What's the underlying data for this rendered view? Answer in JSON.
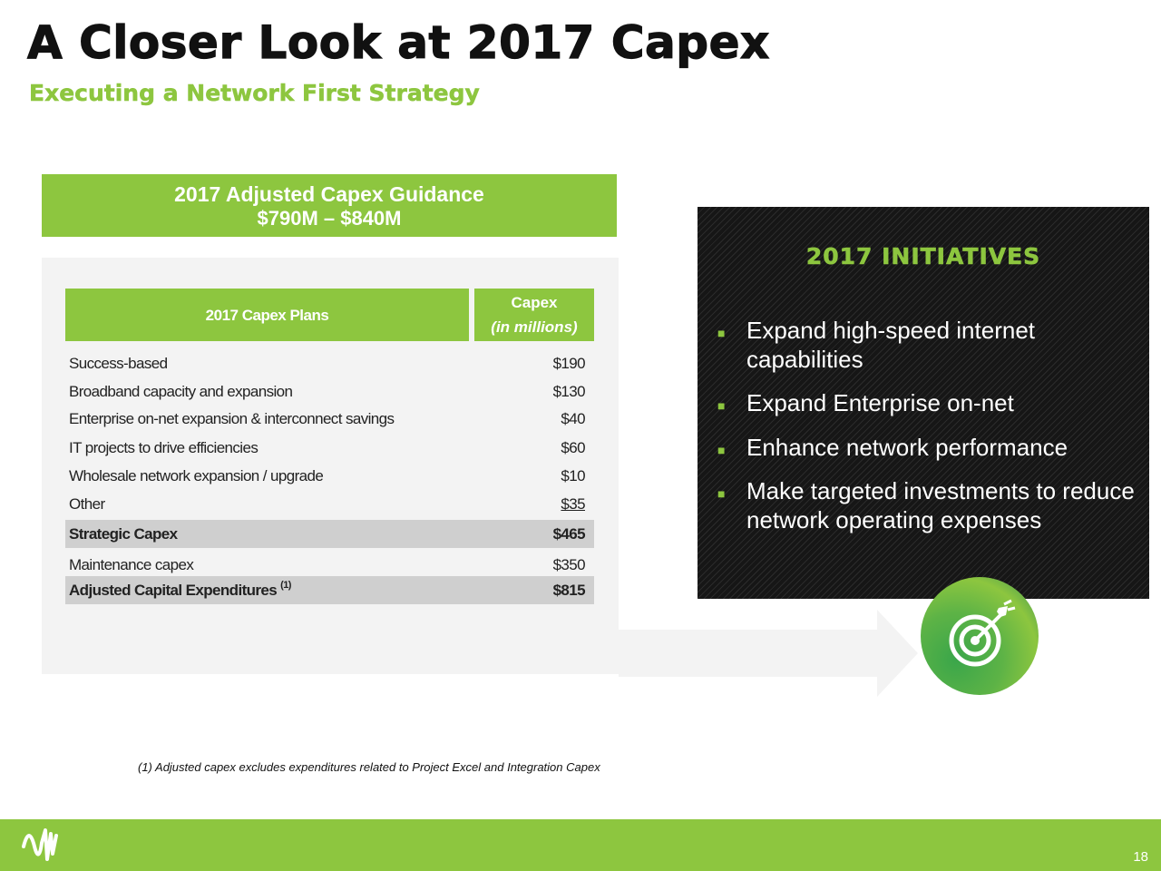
{
  "header": {
    "title": "A Closer Look at 2017 Capex",
    "subtitle": "Executing a Network First Strategy"
  },
  "guidance": {
    "line1": "2017 Adjusted Capex Guidance",
    "line2": "$790M – $840M"
  },
  "table": {
    "col1_header": "2017 Capex Plans",
    "col2_header_line1": "Capex",
    "col2_header_line2": "(in millions)",
    "rows": [
      {
        "label": "Success-based",
        "value": "$190"
      },
      {
        "label": "Broadband capacity and expansion",
        "value": "$130"
      },
      {
        "label": "Enterprise on-net expansion & interconnect savings",
        "value": "$40"
      },
      {
        "label": "IT projects to drive efficiencies",
        "value": "$60"
      },
      {
        "label": "Wholesale network expansion / upgrade",
        "value": "$10"
      },
      {
        "label": "Other",
        "value": "$35"
      },
      {
        "label": "Strategic Capex",
        "value": "$465"
      },
      {
        "label": "Maintenance capex",
        "value": "$350"
      },
      {
        "label": "Adjusted Capital Expenditures",
        "sup": "(1)",
        "value": "$815"
      }
    ]
  },
  "initiatives": {
    "title": "2017 INITIATIVES",
    "items": [
      "Expand high-speed internet capabilities",
      "Expand Enterprise on-net",
      "Enhance network performance",
      "Make targeted investments to reduce network operating expenses"
    ]
  },
  "footnote": "(1) Adjusted capex excludes expenditures related to Project Excel and Integration Capex",
  "page_number": "18",
  "colors": {
    "brand_green": "#8dc63f",
    "dark_panel": "#161616",
    "panel_gray": "#f3f3f3",
    "shaded_row": "#cfcfcf"
  },
  "icons": [
    "target-icon",
    "wave-logo-icon"
  ]
}
